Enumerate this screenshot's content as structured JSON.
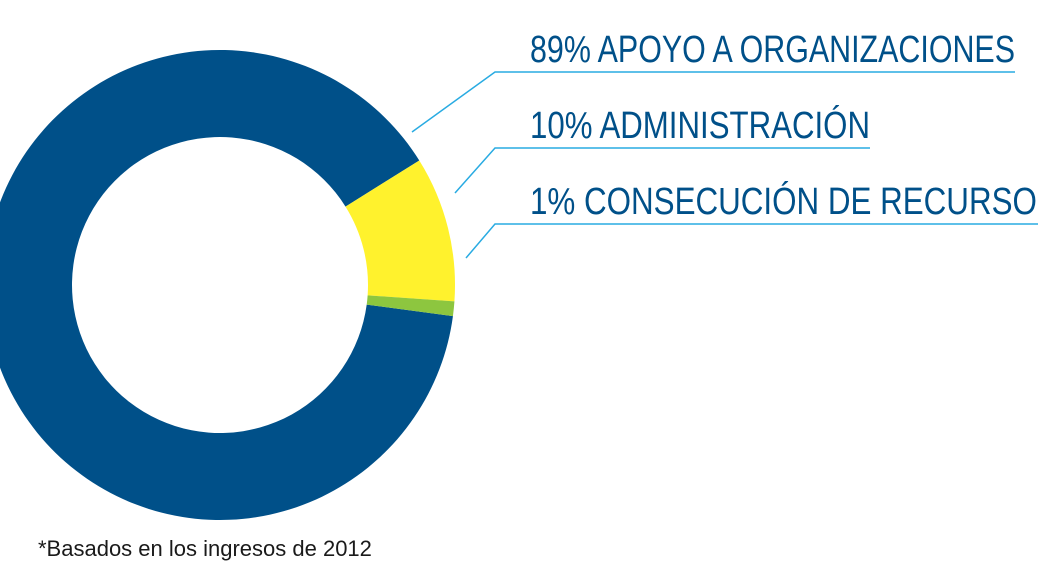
{
  "chart_data": {
    "type": "donut",
    "categories": [
      "APOYO A ORGANIZACIONES",
      "ADMINISTRACIÓN",
      "CONSECUCIÓN DE RECURSOS*"
    ],
    "values": [
      89,
      10,
      1
    ],
    "value_labels": [
      "89%",
      "10%",
      "1%"
    ],
    "colors": [
      "#005089",
      "#fff22d",
      "#8dc63f"
    ],
    "footnote": "*Basados en los ingresos de 2012"
  }
}
